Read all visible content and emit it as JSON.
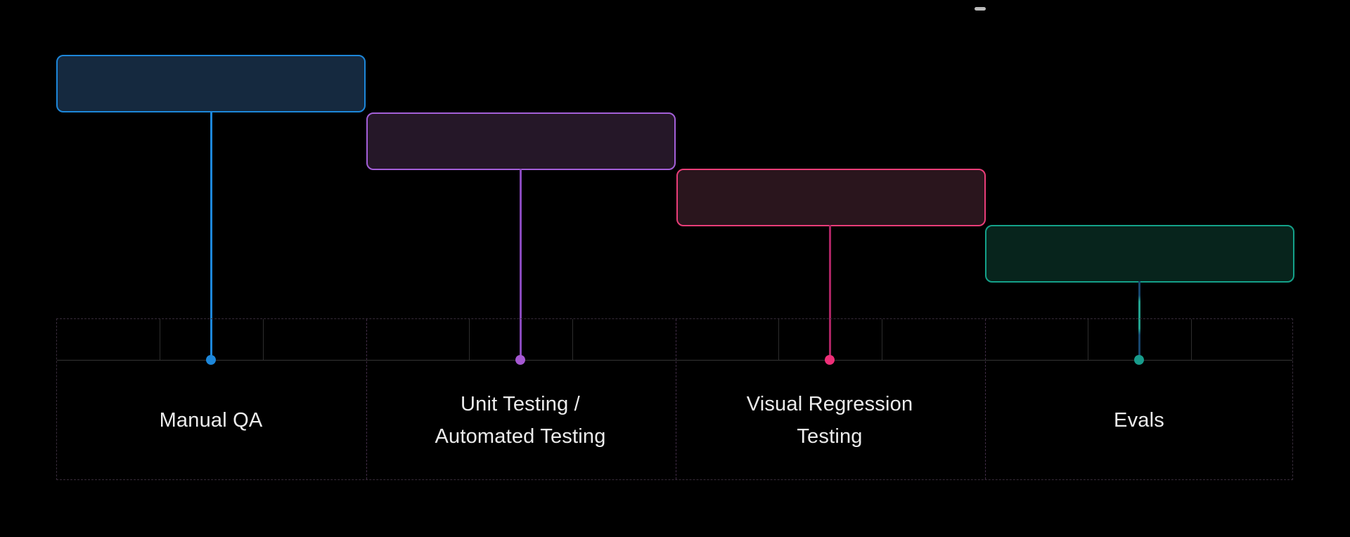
{
  "page": {
    "background": "#000000",
    "label_text_color": "#ececec"
  },
  "ruler": {
    "border_color": "#372b3a",
    "separator_color": "#3f2b44",
    "tick_color": "#2d2d2d",
    "baseline_color": "#343434",
    "sections": 4,
    "ticks_per_section": 3
  },
  "stages": [
    {
      "label": "Manual QA",
      "accent": "#1d87da",
      "box_fill": "#15293f",
      "box_border": "#1d87da",
      "line_color": "#1d87da",
      "dot_color": "#1d87da"
    },
    {
      "label": "Unit Testing /\nAutomated Testing",
      "accent": "#a35fd8",
      "box_fill": "#251728",
      "box_border": "#a35fd8",
      "line_color": "#8a4abe",
      "dot_color": "#a558d2"
    },
    {
      "label": "Visual Regression\nTesting",
      "accent": "#e93d78",
      "box_fill": "#2a151d",
      "box_border": "#e93d78",
      "line_color": "#ad2464",
      "dot_color": "#ee2f78"
    },
    {
      "label": "Evals",
      "accent": "#14a189",
      "box_fill": "#07241c",
      "box_border": "#14a189",
      "line_color": "#22a18d",
      "line_color_alt": "#17466e",
      "dot_color": "#189c8c"
    }
  ],
  "misc": {
    "artifact_dash_color": "#cfcfcf"
  }
}
